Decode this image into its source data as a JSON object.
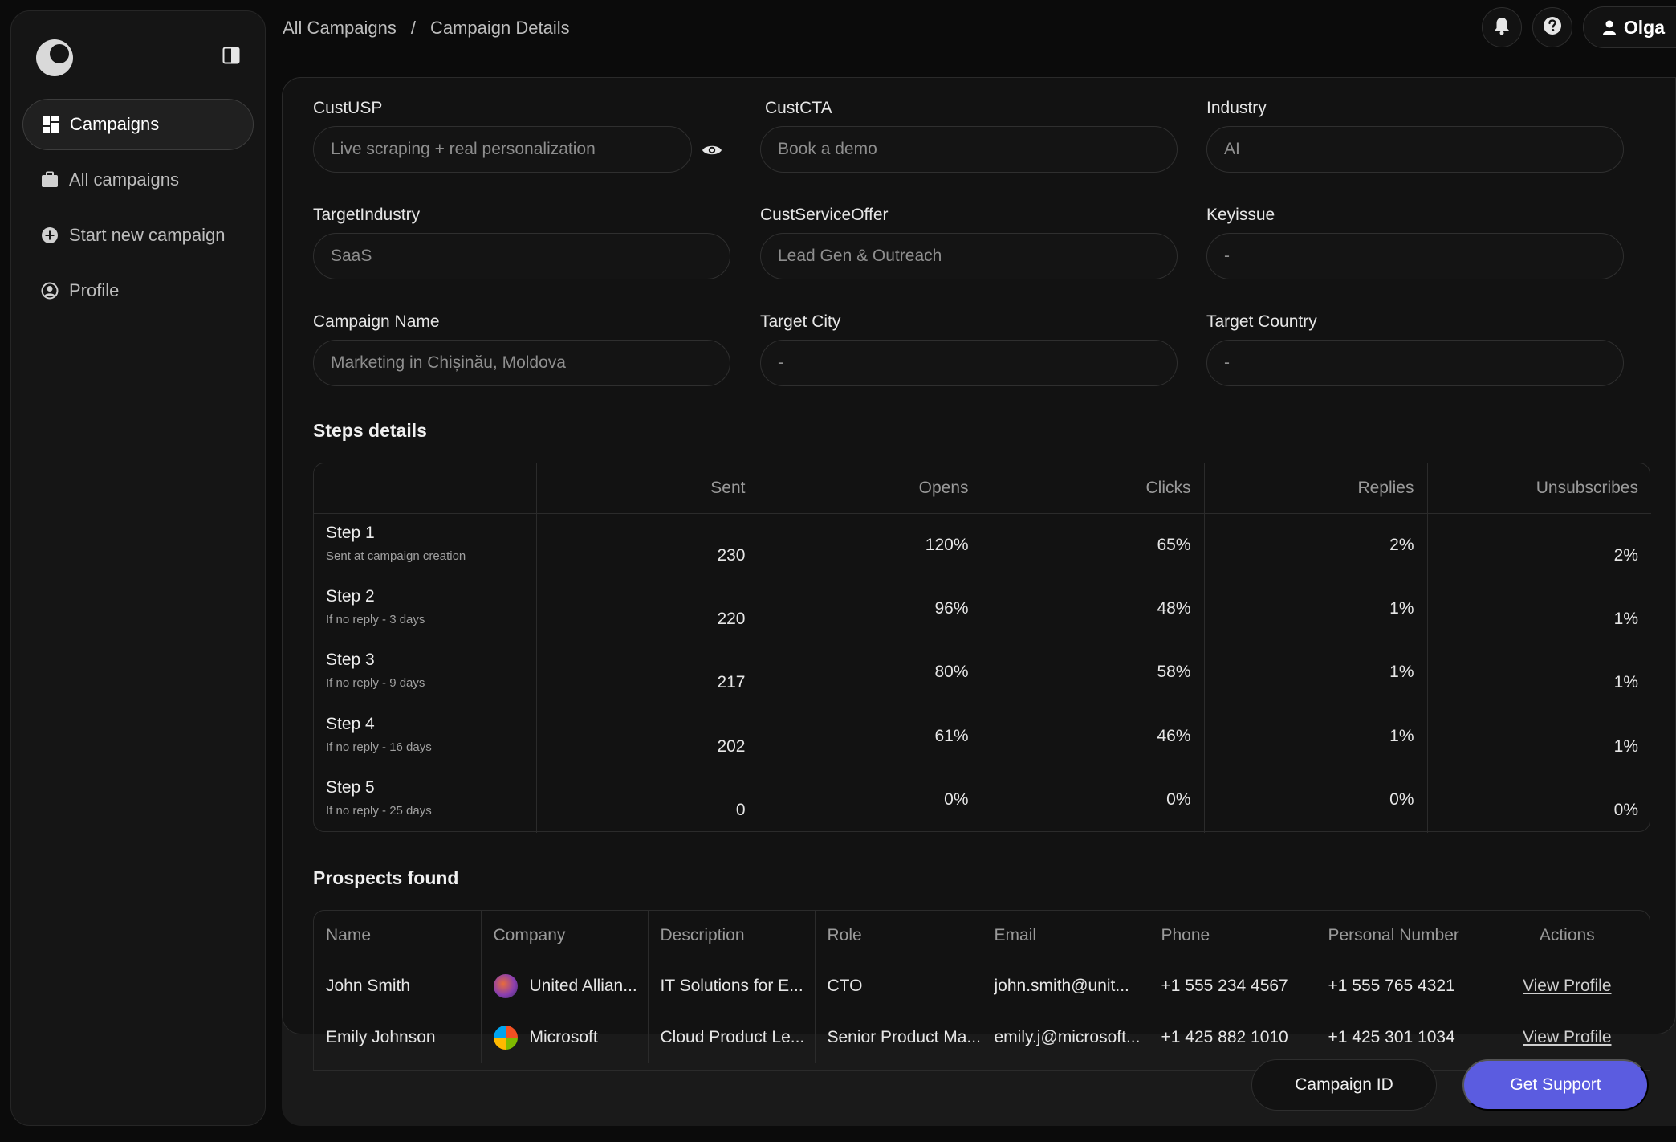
{
  "sidebar": {
    "logo": "app-logo",
    "items": [
      {
        "label": "Campaigns",
        "icon": "dashboard-icon",
        "active": true
      },
      {
        "label": "All campaigns",
        "icon": "briefcase-icon"
      },
      {
        "label": "Start new campaign",
        "icon": "plus-circle-icon"
      },
      {
        "label": "Profile",
        "icon": "user-circle-icon"
      }
    ]
  },
  "breadcrumb": {
    "parent": "All Campaigns",
    "separator": "/",
    "current": "Campaign Details"
  },
  "header": {
    "user_name": "Olga"
  },
  "form": {
    "cust_usp": {
      "label": "CustUSP",
      "value": "Live scraping + real personalization"
    },
    "cust_cta": {
      "label": "CustCTA",
      "value": "Book a demo"
    },
    "industry": {
      "label": "Industry",
      "value": "AI"
    },
    "target_industry": {
      "label": "TargetIndustry",
      "value": "SaaS"
    },
    "cust_service_offer": {
      "label": "CustServiceOffer",
      "value": "Lead Gen & Outreach"
    },
    "key_issue": {
      "label": "Keyissue",
      "value": "-"
    },
    "campaign_name": {
      "label": "Campaign Name",
      "value": "Marketing in Chișinău, Moldova"
    },
    "target_city": {
      "label": "Target City",
      "value": "-"
    },
    "target_country": {
      "label": "Target Country",
      "value": "-"
    }
  },
  "steps": {
    "title": "Steps details",
    "columns": [
      "Sent",
      "Opens",
      "Clicks",
      "Replies",
      "Unsubscribes"
    ],
    "rows": [
      {
        "name": "Step 1",
        "sub": "Sent at campaign creation",
        "sent": "230",
        "opens": "120%",
        "clicks": "65%",
        "replies": "2%",
        "unsubscribes": "2%"
      },
      {
        "name": "Step 2",
        "sub": "If no reply - 3 days",
        "sent": "220",
        "opens": "96%",
        "clicks": "48%",
        "replies": "1%",
        "unsubscribes": "1%"
      },
      {
        "name": "Step 3",
        "sub": "If no reply - 9 days",
        "sent": "217",
        "opens": "80%",
        "clicks": "58%",
        "replies": "1%",
        "unsubscribes": "1%"
      },
      {
        "name": "Step 4",
        "sub": "If no reply - 16 days",
        "sent": "202",
        "opens": "61%",
        "clicks": "46%",
        "replies": "1%",
        "unsubscribes": "1%"
      },
      {
        "name": "Step 5",
        "sub": "If no reply - 25 days",
        "sent": "0",
        "opens": "0%",
        "clicks": "0%",
        "replies": "0%",
        "unsubscribes": "0%"
      }
    ]
  },
  "prospects": {
    "title": "Prospects found",
    "columns": [
      "Name",
      "Company",
      "Description",
      "Role",
      "Email",
      "Phone",
      "Personal Number",
      "Actions"
    ],
    "rows": [
      {
        "name": "John Smith",
        "company": "United Allian...",
        "description": "IT Solutions for E...",
        "role": "CTO",
        "email": "john.smith@unit...",
        "phone": "+1 555 234 4567",
        "personal": "+1 555 765 4321",
        "action": "View Profile"
      },
      {
        "name": "Emily Johnson",
        "company": "Microsoft",
        "description": "Cloud Product Le...",
        "role": "Senior Product Ma...",
        "email": "emily.j@microsoft...",
        "phone": "+1 425 882 1010",
        "personal": "+1 425 301 1034",
        "action": "View Profile"
      }
    ]
  },
  "footer": {
    "campaign_id_label": "Campaign ID",
    "support_label": "Get Support"
  },
  "colors": {
    "accent": "#5b5ce0",
    "background": "#0b0b0b",
    "panel": "#121212"
  }
}
